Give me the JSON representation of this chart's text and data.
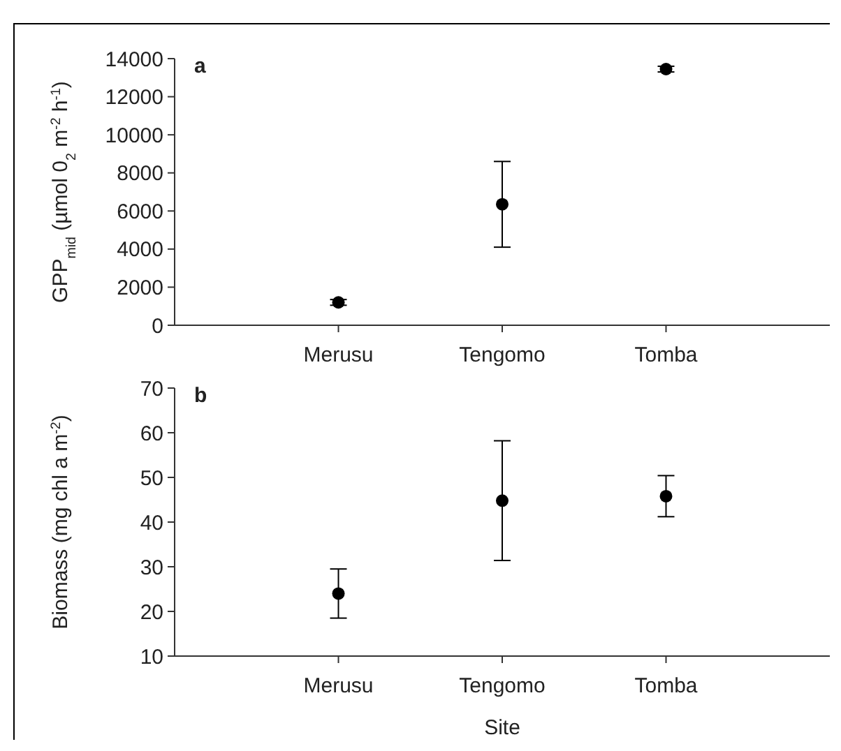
{
  "chart_data": [
    {
      "type": "scatter",
      "title": "a",
      "ylabel": "GPP$_{mid}$ (µmol 0$_{2}$ m$^{-2}$ h$^{-1}$)",
      "categories": [
        null,
        "Merusu",
        "Tengomo",
        "Tomba",
        null
      ],
      "values": [
        null,
        1200,
        6350,
        13450,
        null
      ],
      "errors": [
        null,
        150,
        2250,
        150,
        null
      ],
      "color": "#000000",
      "marker": "circle",
      "ylim": [
        0,
        14000
      ],
      "yticks": [
        0,
        2000,
        4000,
        6000,
        8000,
        10000,
        12000,
        14000
      ]
    },
    {
      "type": "scatter",
      "title": "b",
      "xlabel": "Site",
      "ylabel": "Biomass (mg chl a m$^{-2}$)",
      "categories": [
        null,
        "Merusu",
        "Tengomo",
        "Tomba",
        null
      ],
      "values": [
        null,
        24,
        44.8,
        45.8,
        null
      ],
      "errors": [
        null,
        5.5,
        13.4,
        4.6,
        null
      ],
      "color": "#000000",
      "marker": "circle",
      "ylim": [
        10,
        70
      ],
      "yticks": [
        10,
        20,
        30,
        40,
        50,
        60,
        70
      ]
    }
  ]
}
